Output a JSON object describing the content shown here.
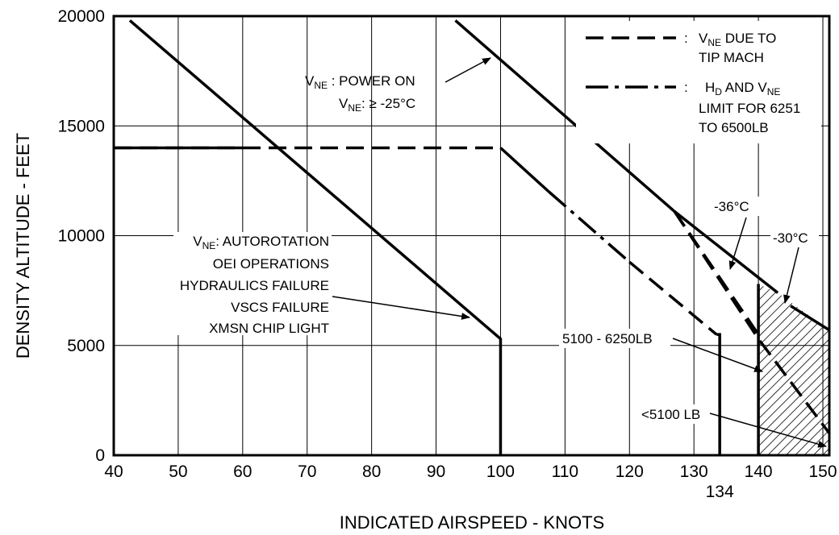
{
  "chart_data": {
    "type": "line",
    "xlabel": "INDICATED AIRSPEED - KNOTS",
    "ylabel": "DENSITY ALTITUDE - FEET",
    "xlim": [
      40,
      151
    ],
    "ylim": [
      0,
      20000
    ],
    "x_ticks": [
      40,
      50,
      60,
      70,
      80,
      90,
      100,
      110,
      120,
      130,
      140,
      150
    ],
    "y_ticks": [
      0,
      5000,
      10000,
      15000,
      20000
    ],
    "extra_x_tick": 134,
    "grid": true,
    "legend": [
      {
        "label_main": "V",
        "label_sub": "NE",
        "label_rest": " DUE TO",
        "label_line2": "TIP MACH",
        "style": "dashed",
        "sep": ":"
      },
      {
        "label_main": "H",
        "label_sub": "D",
        "label_mid": " AND  V",
        "label_sub2": "NE",
        "label_line2": "LIMIT FOR 6251",
        "label_line3": "TO 6500LB",
        "style": "dash-dot",
        "sep": ":"
      }
    ],
    "series": [
      {
        "style": "solid",
        "points": [
          [
            42.5,
            19800
          ],
          [
            100,
            5300
          ],
          [
            100,
            0
          ]
        ]
      },
      {
        "style": "dashed",
        "points": [
          [
            40,
            14000
          ],
          [
            100,
            14000
          ]
        ]
      },
      {
        "style": "solid",
        "points": [
          [
            40,
            14000
          ],
          [
            60,
            14000
          ]
        ]
      },
      {
        "style": "solid",
        "points": [
          [
            100,
            14000
          ],
          [
            107.5,
            12000
          ]
        ]
      },
      {
        "style": "dash-dot",
        "points": [
          [
            107.5,
            12000
          ],
          [
            120,
            8800
          ]
        ]
      },
      {
        "style": "dashed",
        "points": [
          [
            120,
            8800
          ],
          [
            133.5,
            5500
          ]
        ]
      },
      {
        "style": "solid",
        "points": [
          [
            133.5,
            5500
          ],
          [
            134,
            5500
          ],
          [
            134,
            0
          ]
        ]
      },
      {
        "style": "solid",
        "points": [
          [
            93,
            19800
          ],
          [
            127,
            11100
          ],
          [
            143,
            7400
          ]
        ]
      },
      {
        "style": "dashed",
        "points": [
          [
            127,
            11100
          ],
          [
            140,
            5500
          ]
        ]
      },
      {
        "style": "dashed",
        "points": [
          [
            127,
            11100
          ],
          [
            140,
            5300
          ],
          [
            151,
            1000
          ]
        ]
      },
      {
        "style": "solid",
        "points": [
          [
            140,
            7800
          ],
          [
            140,
            0
          ]
        ]
      },
      {
        "style": "solid",
        "points": [
          [
            145,
            6800
          ],
          [
            151,
            5700
          ]
        ]
      }
    ],
    "hatched_region": [
      [
        140,
        7800
      ],
      [
        143,
        7400
      ],
      [
        151,
        5700
      ],
      [
        151,
        0
      ],
      [
        140,
        0
      ]
    ],
    "annotations": [
      {
        "id": "power_on",
        "line1_main": "V",
        "line1_sub": "NE",
        "line1_rest": " : POWER ON",
        "line2_main": "V",
        "line2_sub": "NE",
        "line2_rest": ": ≥ -25°C"
      },
      {
        "id": "autorotation",
        "line1_main": "V",
        "line1_sub": "NE",
        "line1_rest": ": AUTOROTATION",
        "lines": [
          "OEI OPERATIONS",
          "HYDRAULICS FAILURE",
          "VSCS FAILURE",
          "XMSN CHIP LIGHT"
        ]
      },
      {
        "id": "minus36",
        "text": "-36°C"
      },
      {
        "id": "minus30",
        "text": "-30°C"
      },
      {
        "id": "weight_mid",
        "text": "5100 - 6250LB"
      },
      {
        "id": "weight_low",
        "text": "<5100 LB"
      }
    ]
  }
}
